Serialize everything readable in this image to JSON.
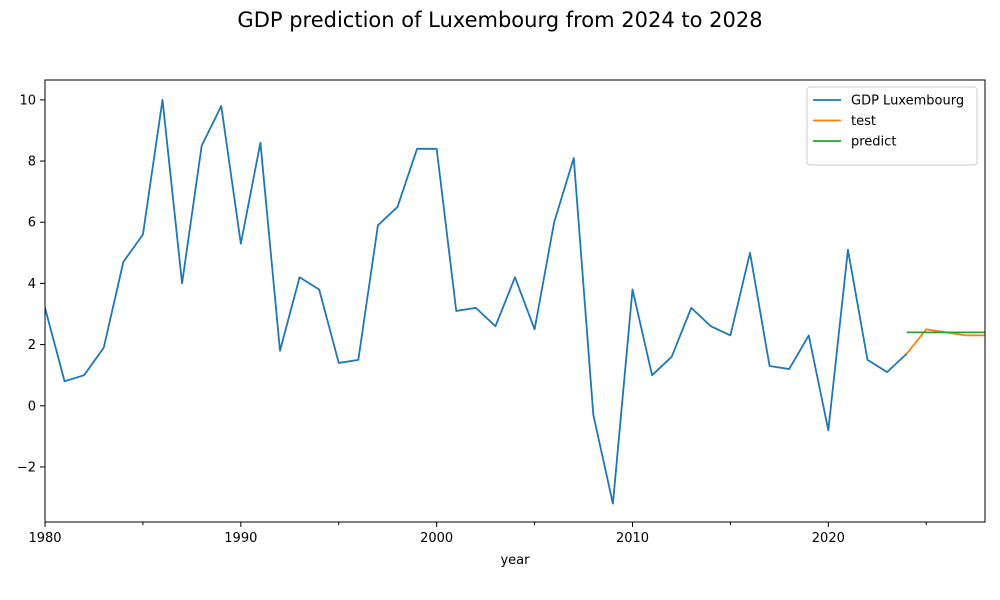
{
  "chart_data": {
    "type": "line",
    "title": "GDP prediction of Luxembourg from 2024 to 2028",
    "xlabel": "year",
    "ylabel": "",
    "xlim": [
      1980,
      2028
    ],
    "ylim": [
      -3.8,
      10.65
    ],
    "x_ticks": [
      1980,
      1990,
      2000,
      2010,
      2020
    ],
    "x_minor_ticks": [
      1985,
      1995,
      2005,
      2015,
      2025
    ],
    "y_ticks": [
      -2,
      0,
      2,
      4,
      6,
      8,
      10
    ],
    "grid": false,
    "legend_position": "top-right",
    "series": [
      {
        "name": "GDP Luxembourg",
        "color": "#1f77b4",
        "x": [
          1980,
          1981,
          1982,
          1983,
          1984,
          1985,
          1986,
          1987,
          1988,
          1989,
          1990,
          1991,
          1992,
          1993,
          1994,
          1995,
          1996,
          1997,
          1998,
          1999,
          2000,
          2001,
          2002,
          2003,
          2004,
          2005,
          2006,
          2007,
          2008,
          2009,
          2010,
          2011,
          2012,
          2013,
          2014,
          2015,
          2016,
          2017,
          2018,
          2019,
          2020,
          2021,
          2022,
          2023,
          2024
        ],
        "values": [
          3.2,
          0.8,
          1.0,
          1.9,
          4.7,
          5.6,
          10.0,
          4.0,
          8.5,
          9.8,
          5.3,
          8.6,
          1.8,
          4.2,
          3.8,
          1.4,
          1.5,
          5.9,
          6.5,
          8.4,
          8.4,
          3.1,
          3.2,
          2.6,
          4.2,
          2.5,
          6.0,
          8.1,
          -0.3,
          -3.2,
          3.8,
          1.0,
          1.6,
          3.2,
          2.6,
          2.3,
          5.0,
          1.3,
          1.2,
          2.3,
          -0.8,
          5.1,
          1.5,
          1.1,
          1.7
        ]
      },
      {
        "name": "test",
        "color": "#ff7f0e",
        "x": [
          2024,
          2025,
          2026,
          2027,
          2028
        ],
        "values": [
          1.7,
          2.5,
          2.4,
          2.3,
          2.3
        ]
      },
      {
        "name": "predict",
        "color": "#2ca02c",
        "x": [
          2024,
          2025,
          2026,
          2027,
          2028
        ],
        "values": [
          2.4,
          2.4,
          2.4,
          2.4,
          2.4
        ]
      }
    ]
  }
}
